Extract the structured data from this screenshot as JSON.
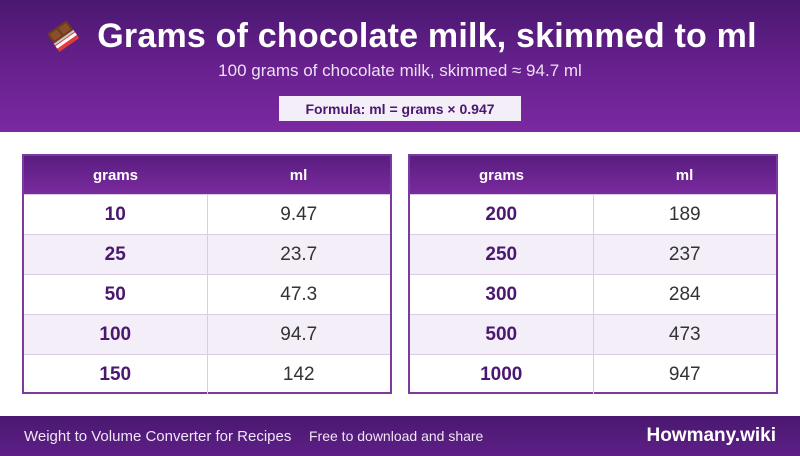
{
  "header": {
    "title": "Grams of chocolate milk, skimmed to ml",
    "subtitle": "100 grams of chocolate milk, skimmed ≈ 94.7 ml",
    "formula": "Formula: ml = grams × 0.947",
    "icon": "chocolate-bar-icon"
  },
  "tables": {
    "left": {
      "col_grams": "grams",
      "col_ml": "ml",
      "rows": [
        {
          "grams": "10",
          "ml": "9.47"
        },
        {
          "grams": "25",
          "ml": "23.7"
        },
        {
          "grams": "50",
          "ml": "47.3"
        },
        {
          "grams": "100",
          "ml": "94.7"
        },
        {
          "grams": "150",
          "ml": "142"
        }
      ]
    },
    "right": {
      "col_grams": "grams",
      "col_ml": "ml",
      "rows": [
        {
          "grams": "200",
          "ml": "189"
        },
        {
          "grams": "250",
          "ml": "237"
        },
        {
          "grams": "300",
          "ml": "284"
        },
        {
          "grams": "500",
          "ml": "473"
        },
        {
          "grams": "1000",
          "ml": "947"
        }
      ]
    }
  },
  "footer": {
    "left": "Weight to Volume Converter for Recipes",
    "middle": "Free to download and share",
    "brand": "Howmany.wiki"
  },
  "colors": {
    "header_purple": "#6a2190",
    "accent": "#4a1870",
    "row_alt": "#f3eef8"
  }
}
